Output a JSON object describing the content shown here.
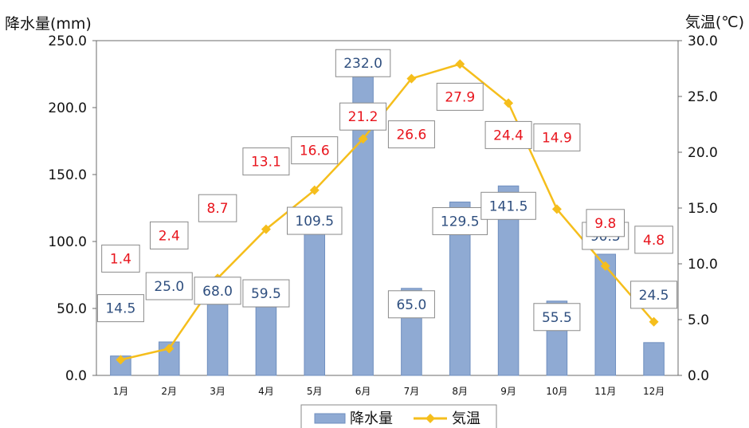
{
  "chart_data": {
    "type": "bar+line",
    "categories": [
      "1月",
      "2月",
      "3月",
      "4月",
      "5月",
      "6月",
      "7月",
      "8月",
      "9月",
      "10月",
      "11月",
      "12月"
    ],
    "y_left": {
      "label": "降水量(mm)",
      "range": [
        0,
        250
      ],
      "ticks": [
        "0.0",
        "50.0",
        "100.0",
        "150.0",
        "200.0",
        "250.0"
      ]
    },
    "y_right": {
      "label": "気温(℃)",
      "range": [
        0,
        30
      ],
      "ticks": [
        "0.0",
        "5.0",
        "10.0",
        "15.0",
        "20.0",
        "25.0",
        "30.0"
      ]
    },
    "series": [
      {
        "name": "降水量",
        "type": "bar",
        "axis": "left",
        "color": "#8faad3",
        "values": [
          14.5,
          25.0,
          68.0,
          59.5,
          109.5,
          232.0,
          65.0,
          129.5,
          141.5,
          55.5,
          90.5,
          24.5
        ],
        "labels": [
          "14.5",
          "25.0",
          "68.0",
          "59.5",
          "109.5",
          "232.0",
          "65.0",
          "129.5",
          "141.5",
          "55.5",
          "90.5",
          "24.5"
        ]
      },
      {
        "name": "気温",
        "type": "line",
        "axis": "right",
        "color": "#f5be1c",
        "values": [
          1.4,
          2.4,
          8.7,
          13.1,
          16.6,
          21.2,
          26.6,
          27.9,
          24.4,
          14.9,
          9.8,
          4.8
        ],
        "labels": [
          "1.4",
          "2.4",
          "8.7",
          "13.1",
          "16.6",
          "21.2",
          "26.6",
          "27.9",
          "24.4",
          "14.9",
          "9.8",
          "4.8"
        ]
      }
    ],
    "legend": {
      "position": "bottom"
    },
    "grid": false
  }
}
